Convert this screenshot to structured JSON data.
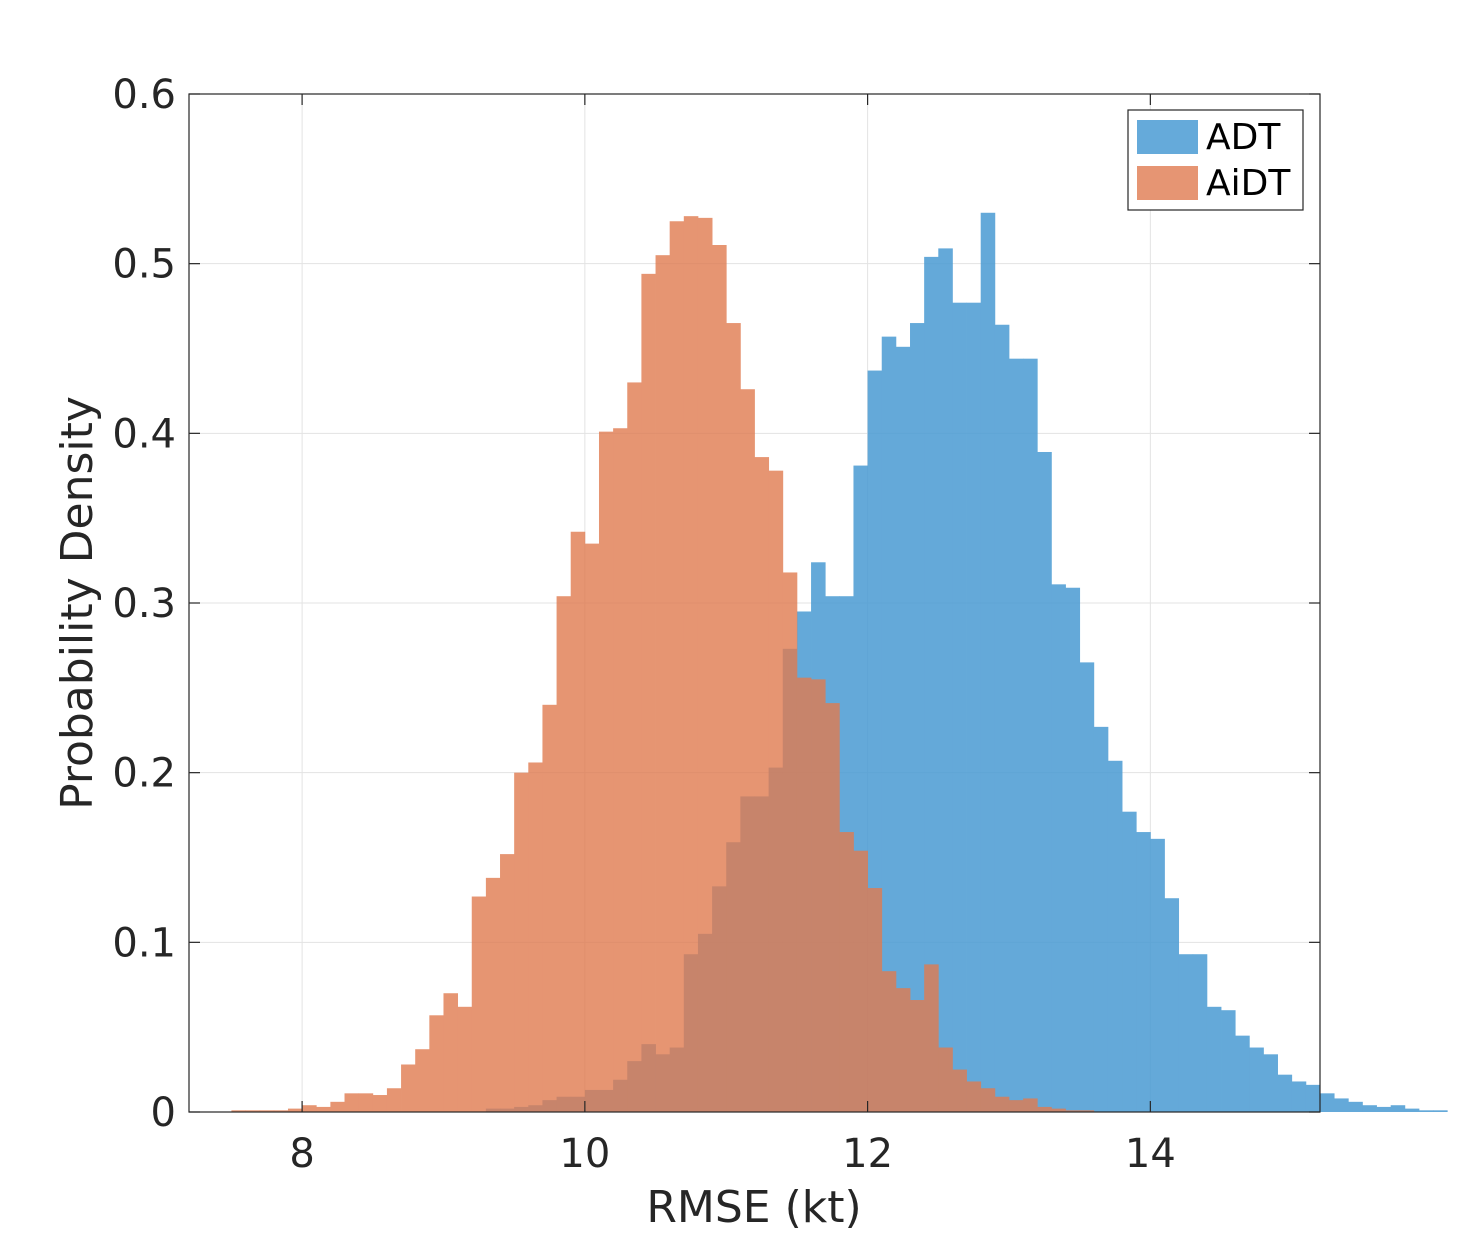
{
  "chart_data": {
    "type": "histogram",
    "xlabel": "RMSE (kt)",
    "ylabel": "Probability Density",
    "xlim": [
      7.2,
      15.2
    ],
    "ylim": [
      0,
      0.6
    ],
    "xticks": [
      8,
      10,
      12,
      14
    ],
    "yticks": [
      0,
      0.1,
      0.2,
      0.3,
      0.4,
      0.5,
      0.6
    ],
    "ytick_labels": [
      "0",
      "0.1",
      "0.2",
      "0.3",
      "0.4",
      "0.5",
      "0.6"
    ],
    "grid": true,
    "legend_position": "top-right",
    "bin_width": 0.1,
    "series": [
      {
        "name": "ADT",
        "color": "#4a9bd3",
        "opacity": 0.85,
        "bin_start": 9.3,
        "values": [
          0.002,
          0.002,
          0.003,
          0.004,
          0.007,
          0.009,
          0.009,
          0.013,
          0.013,
          0.019,
          0.03,
          0.04,
          0.034,
          0.038,
          0.093,
          0.105,
          0.133,
          0.159,
          0.186,
          0.186,
          0.203,
          0.273,
          0.295,
          0.324,
          0.304,
          0.304,
          0.381,
          0.437,
          0.457,
          0.451,
          0.465,
          0.504,
          0.509,
          0.477,
          0.477,
          0.53,
          0.464,
          0.444,
          0.444,
          0.389,
          0.311,
          0.309,
          0.265,
          0.227,
          0.207,
          0.177,
          0.165,
          0.161,
          0.126,
          0.093,
          0.093,
          0.062,
          0.06,
          0.045,
          0.038,
          0.034,
          0.022,
          0.018,
          0.016,
          0.011,
          0.008,
          0.006,
          0.004,
          0.003,
          0.004,
          0.002,
          0.001,
          0.001
        ]
      },
      {
        "name": "AiDT",
        "color": "#e07b50",
        "opacity": 0.8,
        "bin_start": 7.5,
        "values": [
          0.001,
          0.001,
          0.001,
          0.001,
          0.002,
          0.004,
          0.003,
          0.006,
          0.011,
          0.011,
          0.01,
          0.014,
          0.028,
          0.037,
          0.057,
          0.07,
          0.062,
          0.127,
          0.138,
          0.152,
          0.2,
          0.206,
          0.24,
          0.304,
          0.342,
          0.335,
          0.401,
          0.403,
          0.43,
          0.494,
          0.505,
          0.525,
          0.528,
          0.527,
          0.511,
          0.465,
          0.426,
          0.386,
          0.378,
          0.318,
          0.256,
          0.255,
          0.241,
          0.165,
          0.154,
          0.132,
          0.083,
          0.073,
          0.066,
          0.087,
          0.038,
          0.025,
          0.018,
          0.014,
          0.009,
          0.007,
          0.008,
          0.003,
          0.002,
          0.001,
          0.001
        ]
      }
    ]
  }
}
